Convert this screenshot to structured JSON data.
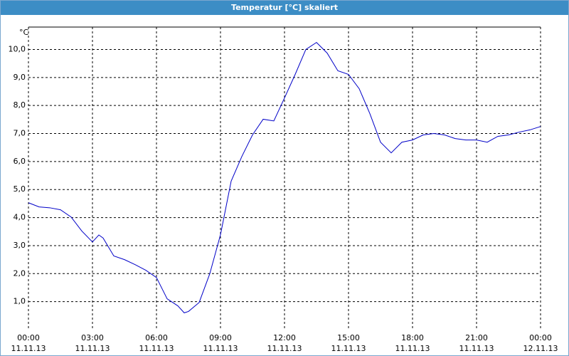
{
  "chart_data": {
    "type": "line",
    "title": "Temperatur [°C] skaliert",
    "y_label": "°C",
    "x": [
      0,
      0.5,
      1,
      1.5,
      2,
      2.5,
      3,
      3.3,
      3.5,
      4,
      4.5,
      5,
      5.5,
      6,
      6.5,
      7,
      7.3,
      7.5,
      8,
      8.5,
      9,
      9.5,
      10,
      10.5,
      11,
      11.5,
      12,
      12.5,
      13,
      13.5,
      14,
      14.5,
      15,
      15.5,
      16,
      16.5,
      17,
      17.5,
      18,
      18.5,
      19,
      19.5,
      20,
      20.5,
      21,
      21.5,
      22,
      22.5,
      23,
      23.5,
      24
    ],
    "series": [
      {
        "name": "Temperatur",
        "color": "#0000c8",
        "values": [
          4.53,
          4.38,
          4.35,
          4.28,
          4.02,
          3.52,
          3.13,
          3.38,
          3.27,
          2.63,
          2.5,
          2.32,
          2.12,
          1.86,
          1.1,
          0.85,
          0.6,
          0.65,
          0.97,
          2.0,
          3.39,
          5.3,
          6.18,
          6.95,
          7.51,
          7.45,
          8.27,
          9.11,
          10.0,
          10.25,
          9.87,
          9.24,
          9.11,
          8.6,
          7.71,
          6.69,
          6.31,
          6.69,
          6.77,
          6.95,
          7.0,
          6.95,
          6.82,
          6.77,
          6.77,
          6.69,
          6.9,
          6.95,
          7.05,
          7.13,
          7.25
        ]
      }
    ],
    "xlim": [
      0,
      24
    ],
    "xticks": [
      {
        "value": 0,
        "label": "00:00"
      },
      {
        "value": 3,
        "label": "03:00"
      },
      {
        "value": 6,
        "label": "06:00"
      },
      {
        "value": 9,
        "label": "09:00"
      },
      {
        "value": 12,
        "label": "12:00"
      },
      {
        "value": 15,
        "label": "15:00"
      },
      {
        "value": 18,
        "label": "18:00"
      },
      {
        "value": 21,
        "label": "21:00"
      },
      {
        "value": 24,
        "label": "00:00"
      }
    ],
    "xtick_dates": [
      "11.11.13",
      "11.11.13",
      "11.11.13",
      "11.11.13",
      "11.11.13",
      "11.11.13",
      "11.11.13",
      "11.11.13",
      "12.11.13"
    ],
    "ylim": [
      0,
      10.8
    ],
    "yticks": [
      {
        "value": 1,
        "label": "1,0"
      },
      {
        "value": 2,
        "label": "2,0"
      },
      {
        "value": 3,
        "label": "3,0"
      },
      {
        "value": 4,
        "label": "4,0"
      },
      {
        "value": 5,
        "label": "5,0"
      },
      {
        "value": 6,
        "label": "6,0"
      },
      {
        "value": 7,
        "label": "7,0"
      },
      {
        "value": 8,
        "label": "8,0"
      },
      {
        "value": 9,
        "label": "9,0"
      },
      {
        "value": 10,
        "label": "10,0"
      }
    ],
    "grid": true
  }
}
